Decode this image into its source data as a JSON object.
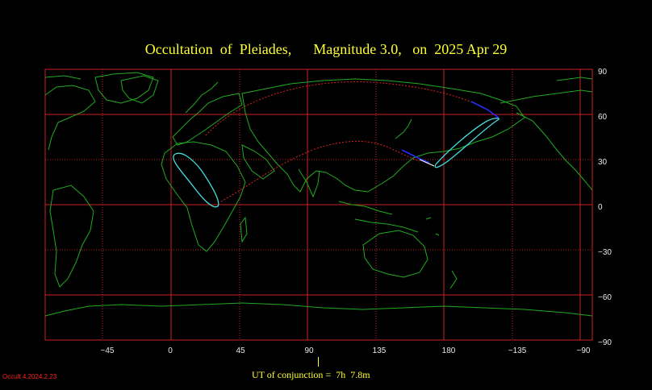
{
  "title": "Occultation  of  Pleiades,      Magnitude 3.0,   on  2025 Apr 29",
  "longitude_ticks": [
    "−45",
    "0",
    "45",
    "90",
    "135",
    "180",
    "−135",
    "−90"
  ],
  "latitude_ticks": [
    "90",
    "60",
    "30",
    "0",
    "−30",
    "−60",
    "−90"
  ],
  "ut_conjunction": "UT of conjunction =  7h  7.8m",
  "version": "Occult 4.2024.2.23",
  "colors": {
    "grid": "#cc2222",
    "coast": "#22aa22",
    "limit_line": "#dd2222",
    "track_outline": "#44dddd",
    "daylight_segment": "#2a2aff",
    "text": "#ffff33"
  }
}
